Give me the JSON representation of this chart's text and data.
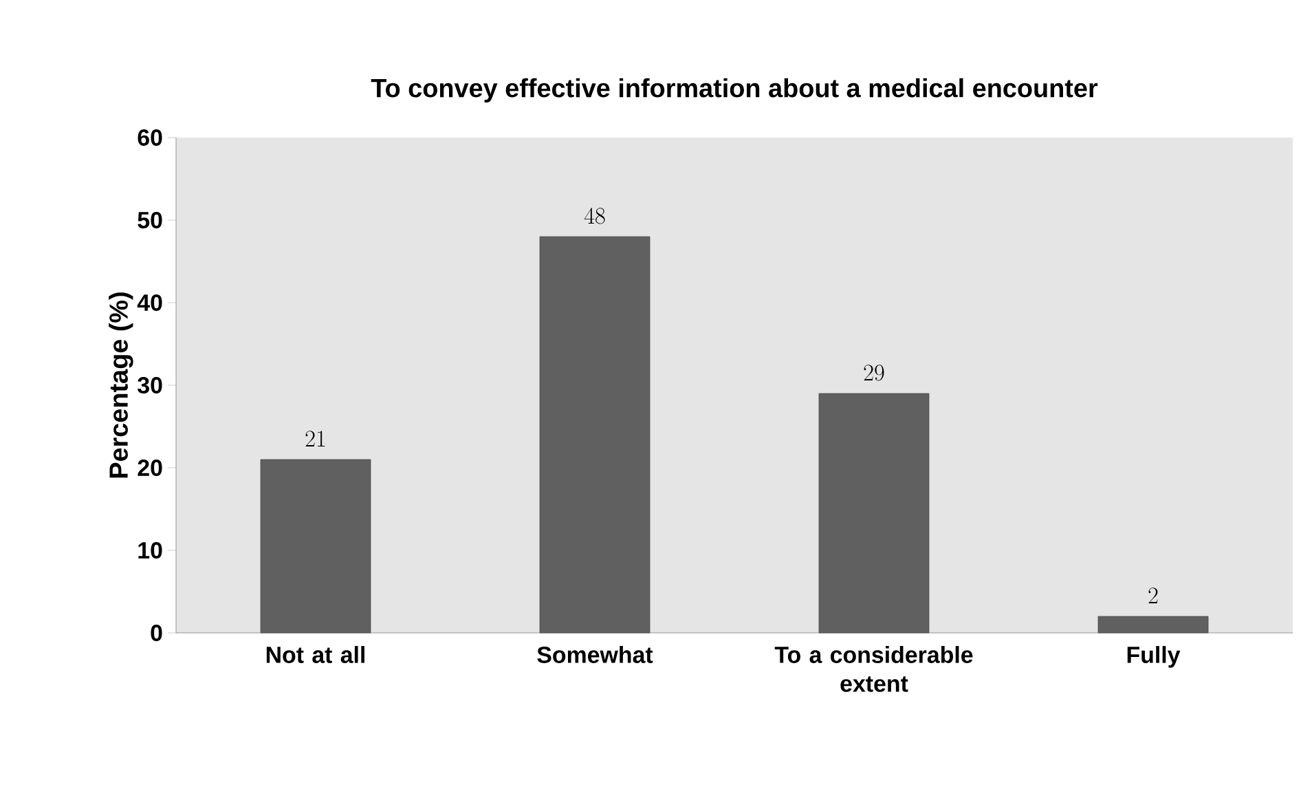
{
  "chart_data": {
    "type": "bar",
    "title": "To convey effective information about a medical encounter",
    "ylabel": "Percentage (%)",
    "categories": [
      "Not at all",
      "Somewhat",
      "To a considerable extent",
      "Fully"
    ],
    "values": [
      21,
      48,
      29,
      2
    ],
    "color": "#606060",
    "ylim": [
      0,
      60
    ],
    "yticks": [
      0,
      10,
      20,
      30,
      40,
      50,
      60
    ],
    "data_labels": true
  }
}
